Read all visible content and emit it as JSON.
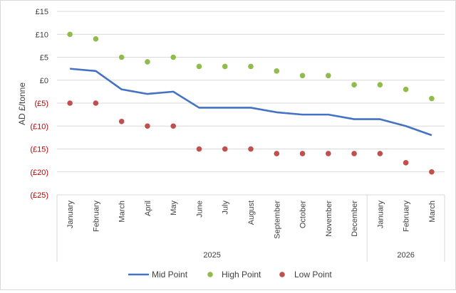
{
  "chart_data": {
    "type": "line",
    "title": "",
    "xlabel": "",
    "ylabel": "AD £/tonne",
    "ylim": [
      -25,
      15
    ],
    "y_ticks": [
      {
        "value": 15,
        "label": "£15"
      },
      {
        "value": 10,
        "label": "£10"
      },
      {
        "value": 5,
        "label": "£5"
      },
      {
        "value": 0,
        "label": "£0"
      },
      {
        "value": -5,
        "label": "(£5)"
      },
      {
        "value": -10,
        "label": "(£10)"
      },
      {
        "value": -15,
        "label": "(£15)"
      },
      {
        "value": -20,
        "label": "(£20)"
      },
      {
        "value": -25,
        "label": "(£25)"
      }
    ],
    "negative_tick_color": "#c00000",
    "grid": true,
    "categories": [
      "January",
      "February",
      "March",
      "April",
      "May",
      "June",
      "July",
      "August",
      "September",
      "October",
      "November",
      "December",
      "January",
      "February",
      "March"
    ],
    "year_groups": [
      {
        "label": "2025",
        "start": 0,
        "end": 11
      },
      {
        "label": "2026",
        "start": 12,
        "end": 14
      }
    ],
    "series": [
      {
        "name": "Mid Point",
        "kind": "line",
        "color": "#4472c4",
        "values": [
          2.5,
          2,
          -2,
          -3,
          -2.5,
          -6,
          -6,
          -6,
          -7,
          -7.5,
          -7.5,
          -8.5,
          -8.5,
          -10,
          -12
        ]
      },
      {
        "name": "High Point",
        "kind": "marker",
        "color": "#8fbc4b",
        "values": [
          10,
          9,
          5,
          4,
          5,
          3,
          3,
          3,
          2,
          1,
          1,
          -1,
          -1,
          -2,
          -4
        ]
      },
      {
        "name": "Low Point",
        "kind": "marker",
        "color": "#c0504d",
        "values": [
          -5,
          -5,
          -9,
          -10,
          -10,
          -15,
          -15,
          -15,
          -16,
          -16,
          -16,
          -16,
          -16,
          -18,
          -20
        ]
      }
    ],
    "legend_position": "bottom"
  }
}
